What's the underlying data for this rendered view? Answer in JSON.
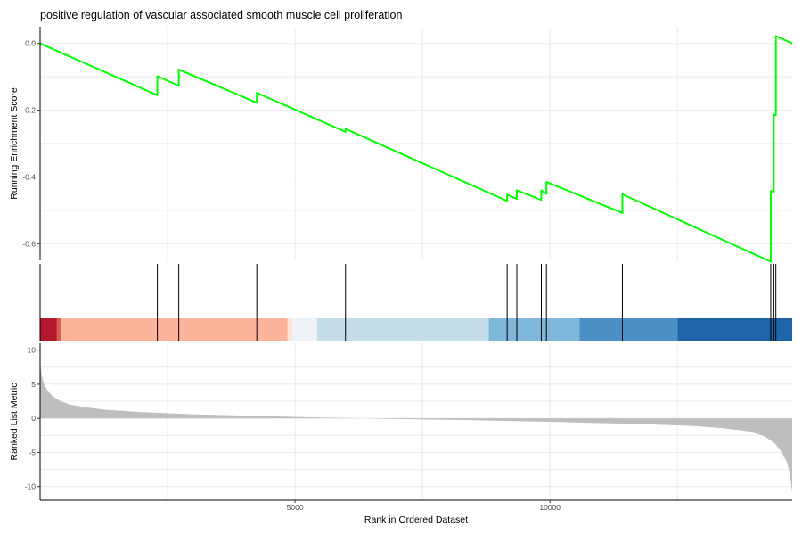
{
  "chart_data": {
    "type": "line",
    "title": "positive regulation of vascular associated smooth muscle cell proliferation",
    "xlabel": "Rank in Ordered Dataset",
    "x_ticks": [
      5000,
      10000
    ],
    "x_tick_labels": [
      "5000",
      "10000"
    ],
    "xlim": [
      0,
      14750
    ],
    "panels": {
      "running_score": {
        "ylabel": "Running Enrichment Score",
        "ylim": [
          -0.65,
          0.05
        ],
        "y_ticks": [
          0.0,
          -0.2,
          -0.4,
          -0.6
        ],
        "y_tick_labels": [
          "0.0",
          "-0.2",
          "-0.4",
          "-0.6"
        ],
        "line_color": "#00ff00",
        "series": [
          {
            "x": [
              0,
              2300,
              2300,
              2720,
              2720,
              4250,
              4250,
              5990,
              5990,
              9160,
              9160,
              9350,
              9350,
              9830,
              9830,
              9930,
              9930,
              11420,
              11420,
              14330,
              14330,
              14390,
              14390,
              14430,
              14430,
              14750
            ],
            "y": [
              0.0,
              -0.155,
              -0.098,
              -0.127,
              -0.078,
              -0.178,
              -0.148,
              -0.265,
              -0.256,
              -0.472,
              -0.453,
              -0.466,
              -0.44,
              -0.469,
              -0.44,
              -0.451,
              -0.415,
              -0.508,
              -0.452,
              -0.654,
              -0.442,
              -0.444,
              -0.213,
              -0.215,
              0.022,
              0.0
            ]
          }
        ]
      },
      "hits": {
        "positions": [
          2300,
          2720,
          4250,
          5990,
          9160,
          9350,
          9830,
          9930,
          11420,
          14330,
          14390,
          14430
        ]
      },
      "color_bar": {
        "segments": [
          {
            "from": 0,
            "to": 330,
            "color": "#b2182b"
          },
          {
            "from": 330,
            "to": 420,
            "color": "#d6604d"
          },
          {
            "from": 420,
            "to": 4850,
            "color": "#fcb49a"
          },
          {
            "from": 4850,
            "to": 4950,
            "color": "#fde4d9"
          },
          {
            "from": 4950,
            "to": 5430,
            "color": "#eef3fa"
          },
          {
            "from": 5430,
            "to": 8800,
            "color": "#c4dde9"
          },
          {
            "from": 8800,
            "to": 10580,
            "color": "#7db8da"
          },
          {
            "from": 10580,
            "to": 12500,
            "color": "#4a90c6"
          },
          {
            "from": 12500,
            "to": 14750,
            "color": "#1f63a8"
          }
        ]
      },
      "ranked_list": {
        "ylabel": "Ranked List Metric",
        "ylim": [
          -12,
          11
        ],
        "y_ticks": [
          10,
          5,
          0,
          -5,
          -10
        ],
        "y_tick_labels": [
          "10",
          "5",
          "0",
          "-5",
          "-10"
        ],
        "fill_color": "#bebebe",
        "x": [
          0,
          30,
          80,
          150,
          250,
          400,
          600,
          900,
          1300,
          2000,
          3000,
          4000,
          5000,
          6000,
          7000,
          8000,
          9000,
          10000,
          11000,
          12000,
          12800,
          13400,
          13900,
          14200,
          14400,
          14550,
          14650,
          14700,
          14730,
          14750
        ],
        "y": [
          8.4,
          6.3,
          5.0,
          4.0,
          3.2,
          2.5,
          2.0,
          1.6,
          1.25,
          0.9,
          0.6,
          0.4,
          0.2,
          0.05,
          -0.1,
          -0.2,
          -0.35,
          -0.5,
          -0.7,
          -0.9,
          -1.1,
          -1.45,
          -1.9,
          -2.6,
          -3.6,
          -5.0,
          -6.5,
          -8.0,
          -9.6,
          -10.8
        ]
      }
    }
  }
}
